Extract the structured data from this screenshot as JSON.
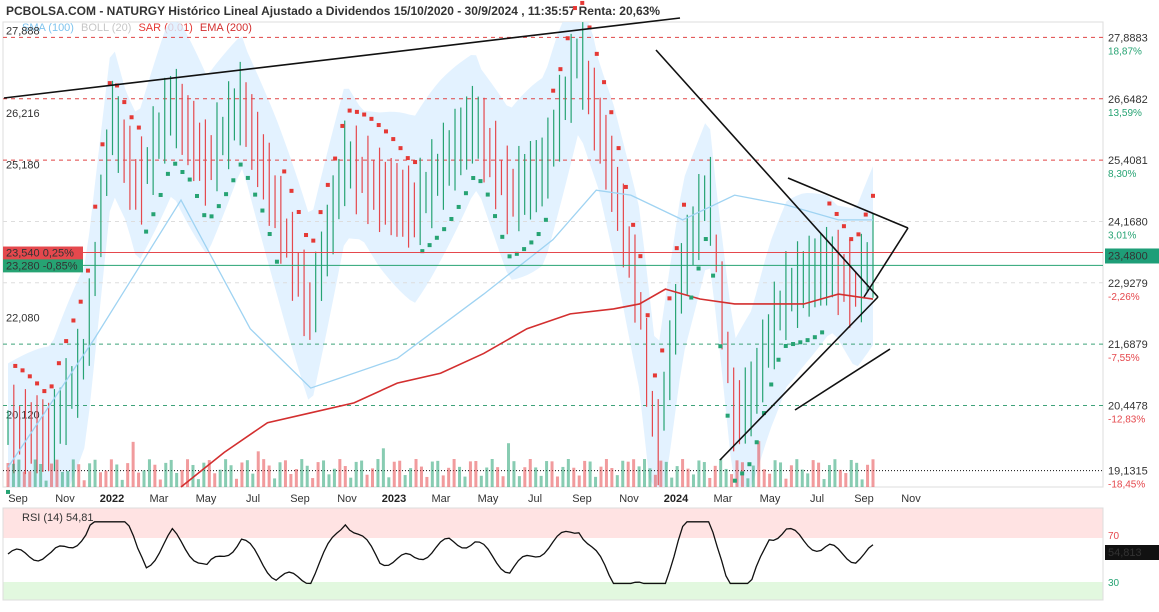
{
  "header": {
    "title": "PCBOLSA.COM - NATURGY Histórico Lineal Ajustado a Dividendos 15/10/2020 - 30/9/2024 , 11:35:57 Renta: 20,63%"
  },
  "legend": [
    {
      "label": "SMA (100)",
      "color": "#7fc4ee"
    },
    {
      "label": "BOLL (20)",
      "color": "#c7c7c7"
    },
    {
      "label": "SAR (0.01)",
      "color": "#e53935"
    },
    {
      "label": "EMA (200)",
      "color": "#d32f2f"
    }
  ],
  "colors": {
    "up": "#26a373",
    "down": "#e5484d",
    "boll_fill": "#dcefff",
    "sma": "#9fd3f2",
    "ema": "#d32f2f",
    "sar": "#e53935",
    "price_line": "#1e9e78",
    "trend": "#111111"
  },
  "chart_data": {
    "type": "line",
    "title": "NATURGY Histórico Lineal Ajustado a Dividendos 15/10/2020 - 30/9/2024",
    "ylim": [
      18.8,
      28.2
    ],
    "x_axis": {
      "labels": [
        "Sep",
        "Nov",
        "2022",
        "Mar",
        "May",
        "Jul",
        "Sep",
        "Nov",
        "2023",
        "Mar",
        "May",
        "Jul",
        "Sep",
        "Nov",
        "2024",
        "Mar",
        "May",
        "Jul",
        "Sep",
        "Nov"
      ],
      "bold": [
        "2022",
        "2023",
        "2024"
      ]
    },
    "right_axis": [
      {
        "value": 27.8883,
        "label": "27,8883",
        "pct": "18,87%",
        "pct_sign": "up"
      },
      {
        "value": 26.6482,
        "label": "26,6482",
        "pct": "13,59%",
        "pct_sign": "up"
      },
      {
        "value": 25.4081,
        "label": "25,4081",
        "pct": "8,30%",
        "pct_sign": "up"
      },
      {
        "value": 24.168,
        "label": "24,1680",
        "pct": "3,01%",
        "pct_sign": "up"
      },
      {
        "value": 22.9279,
        "label": "22,9279",
        "pct": "-2,26%",
        "pct_sign": "down"
      },
      {
        "value": 21.6879,
        "label": "21,6879",
        "pct": "-7,55%",
        "pct_sign": "down"
      },
      {
        "value": 20.4478,
        "label": "20,4478",
        "pct": "-12,83%",
        "pct_sign": "down"
      },
      {
        "value": 19.1315,
        "label": "19,1315",
        "pct": "-18,45%",
        "pct_sign": "down"
      }
    ],
    "left_levels": [
      {
        "value": 27.888,
        "label": "27,888"
      },
      {
        "value": 26.216,
        "label": "26,216"
      },
      {
        "value": 25.18,
        "label": "25,180"
      },
      {
        "value": 22.08,
        "label": "22,080"
      },
      {
        "value": 20.12,
        "label": "20,120"
      }
    ],
    "price_tags": [
      {
        "label": "23,540",
        "pct": "0,25%",
        "value": 23.54,
        "color": "#e5484d"
      },
      {
        "label": "23,280",
        "pct": "-0,85%",
        "value": 23.28,
        "color": "#26a373"
      }
    ],
    "last_price": {
      "value": 23.48,
      "label": "23,4800"
    },
    "support_level": 19.6,
    "series": [
      {
        "key": "price",
        "x": [
          0,
          0.05,
          0.09,
          0.12,
          0.15,
          0.19,
          0.23,
          0.27,
          0.31,
          0.35,
          0.39,
          0.43,
          0.47,
          0.5,
          0.54,
          0.58,
          0.62,
          0.66,
          0.7,
          0.73,
          0.75,
          0.78,
          0.81,
          0.84,
          0.86,
          0.88,
          0.9,
          0.92,
          0.95,
          0.98,
          1.0
        ],
        "values": [
          20.0,
          19.8,
          21.5,
          26.3,
          24.8,
          26.6,
          25.3,
          26.6,
          24.5,
          22.3,
          25.4,
          24.8,
          24.4,
          25.2,
          26.2,
          24.7,
          25.2,
          27.6,
          25.0,
          22.6,
          19.5,
          23.2,
          24.9,
          20.2,
          20.6,
          21.8,
          22.7,
          23.0,
          23.3,
          22.8,
          23.48
        ]
      },
      {
        "key": "sma100",
        "x": [
          0,
          0.1,
          0.2,
          0.28,
          0.35,
          0.45,
          0.55,
          0.63,
          0.68,
          0.72,
          0.78,
          0.84,
          0.9,
          0.96,
          1.0
        ],
        "values": [
          19.2,
          21.8,
          24.6,
          22.0,
          20.8,
          21.4,
          22.7,
          23.8,
          24.8,
          24.7,
          24.2,
          24.7,
          24.5,
          24.2,
          24.2
        ]
      },
      {
        "key": "ema200",
        "x": [
          0.2,
          0.25,
          0.3,
          0.35,
          0.4,
          0.45,
          0.5,
          0.55,
          0.6,
          0.65,
          0.7,
          0.73,
          0.76,
          0.8,
          0.84,
          0.88,
          0.92,
          0.96,
          1.0
        ],
        "values": [
          18.8,
          19.5,
          20.1,
          20.3,
          20.5,
          20.9,
          21.1,
          21.5,
          22.0,
          22.3,
          22.4,
          22.5,
          22.8,
          22.6,
          22.5,
          22.5,
          22.5,
          22.7,
          22.6
        ]
      }
    ],
    "rsi": {
      "label": "RSI (14)",
      "value_label": "54,81",
      "last": "54,813",
      "levels": [
        70,
        30
      ]
    }
  }
}
